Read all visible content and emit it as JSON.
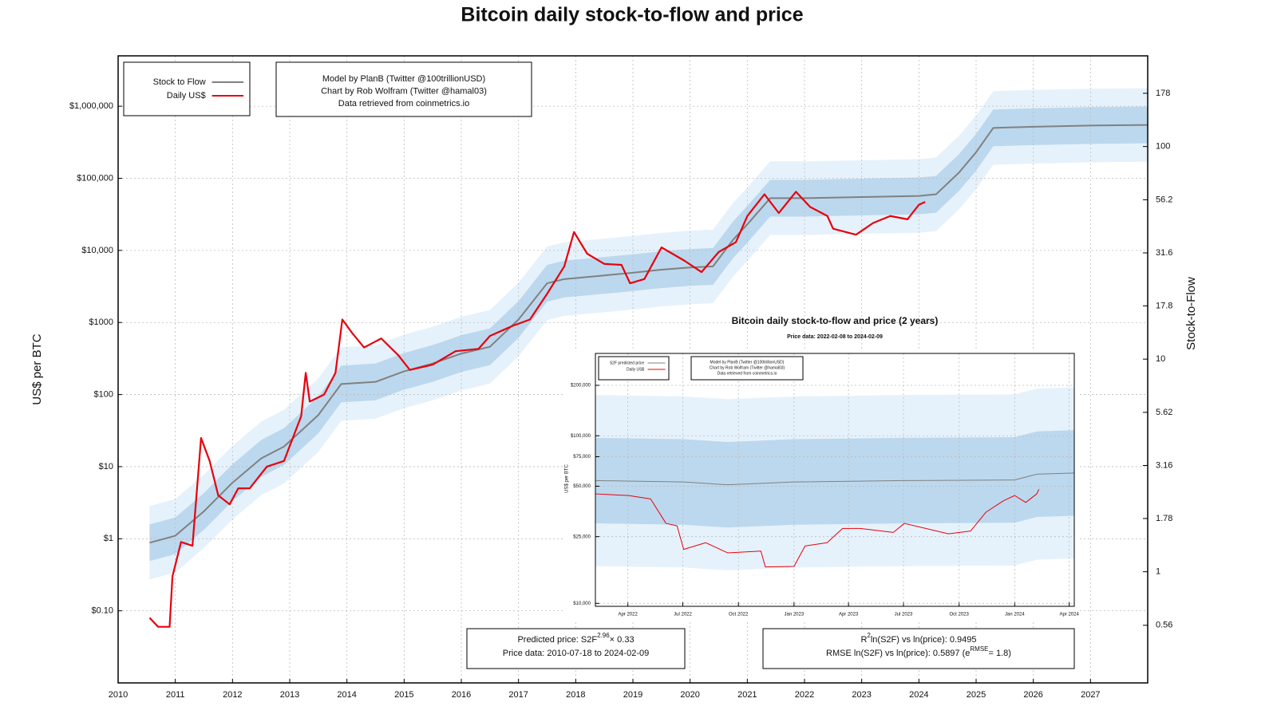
{
  "chart_data": [
    {
      "type": "line",
      "title": "Bitcoin daily stock-to-flow and price",
      "ylabel": "US$ per BTC",
      "y2label": "Stock-to-Flow",
      "xlim": [
        2010,
        2028
      ],
      "xticks": [
        2010,
        2011,
        2012,
        2013,
        2014,
        2015,
        2016,
        2017,
        2018,
        2019,
        2020,
        2021,
        2022,
        2023,
        2024,
        2025,
        2026,
        2027
      ],
      "ylim": [
        0.01,
        5000000
      ],
      "y_log": true,
      "yticks": [
        {
          "value": 1000000,
          "label": "$1,000,000"
        },
        {
          "value": 100000,
          "label": "$100,000"
        },
        {
          "value": 10000,
          "label": "$10,000"
        },
        {
          "value": 1000,
          "label": "$1000"
        },
        {
          "value": 100,
          "label": "$100"
        },
        {
          "value": 10,
          "label": "$10"
        },
        {
          "value": 1,
          "label": "$1"
        },
        {
          "value": 0.1,
          "label": "$0.10"
        }
      ],
      "y2lim": [
        0.3,
        267
      ],
      "y2_log": true,
      "y2ticks": [
        178,
        100,
        56.2,
        31.6,
        17.8,
        10,
        5.62,
        3.16,
        1.78,
        1,
        0.56
      ],
      "grid": true,
      "legend": "upper left",
      "series": [
        {
          "name": "Stock to Flow",
          "color": "#808080",
          "x": [
            2010.55,
            2011.0,
            2011.5,
            2012.0,
            2012.5,
            2012.9,
            2013.5,
            2013.9,
            2014.5,
            2015.0,
            2015.5,
            2016.0,
            2016.5,
            2017.0,
            2017.5,
            2017.8,
            2018.5,
            2019.0,
            2019.5,
            2020.0,
            2020.4,
            2020.75,
            2021.0,
            2021.4,
            2022.0,
            2023.0,
            2024.0,
            2024.3,
            2024.7,
            2025.0,
            2025.3,
            2026.0,
            2027.0,
            2028.0
          ],
          "values": [
            0.88,
            1.1,
            2.4,
            6,
            13,
            19,
            52,
            140,
            150,
            210,
            270,
            370,
            460,
            1100,
            3500,
            4000,
            4500,
            4900,
            5400,
            5800,
            6000,
            14000,
            23000,
            53000,
            53000,
            55000,
            57000,
            60000,
            120000,
            230000,
            500000,
            520000,
            540000,
            550000
          ],
          "bands": [
            {
              "color": "#e6f2fb",
              "upper": [
                2.85,
                3.56,
                7.78,
                19.4,
                42.1,
                61.6,
                168,
                454,
                486,
                680,
                875,
                1199,
                1490,
                3564,
                11340,
                12960,
                14580,
                15876,
                17496,
                18792,
                19440,
                45360,
                74520,
                171720,
                171720,
                178200,
                184680,
                194400,
                388800,
                745200,
                1620000,
                1684800,
                1749600,
                1782000
              ],
              "lower": [
                0.272,
                0.34,
                0.741,
                1.85,
                4.01,
                5.86,
                16.0,
                43.2,
                46.3,
                64.8,
                83.3,
                114,
                142,
                340,
                1080,
                1235,
                1389,
                1512,
                1667,
                1790,
                1852,
                4321,
                7099,
                16358,
                16358,
                16975,
                17593,
                18519,
                37037,
                70988,
                154321,
                160494,
                166667,
                169753
              ]
            },
            {
              "color": "#bcd8ee",
              "upper": [
                1.58,
                1.98,
                4.3,
                10.8,
                23.4,
                34.2,
                94,
                252,
                270,
                378,
                486,
                666,
                828,
                1980,
                6300,
                7200,
                8100,
                8820,
                9720,
                10440,
                10800,
                25200,
                41400,
                95400,
                95400,
                99000,
                102600,
                108000,
                216000,
                414000,
                900000,
                936000,
                972000,
                990000
              ],
              "lower": [
                0.49,
                0.61,
                1.33,
                3.33,
                7.2,
                10.6,
                28.9,
                77.8,
                83.3,
                117,
                150,
                206,
                256,
                611,
                1944,
                2222,
                2500,
                2722,
                3000,
                3222,
                3333,
                7778,
                12778,
                29444,
                29444,
                30556,
                31667,
                33333,
                66667,
                127778,
                277778,
                288889,
                300000,
                305556
              ]
            }
          ]
        },
        {
          "name": "Daily US$",
          "color": "#e8000b",
          "x": [
            2010.55,
            2010.7,
            2010.9,
            2010.95,
            2011.1,
            2011.3,
            2011.45,
            2011.6,
            2011.75,
            2011.95,
            2012.1,
            2012.3,
            2012.6,
            2012.9,
            2013.2,
            2013.28,
            2013.35,
            2013.6,
            2013.8,
            2013.92,
            2014.1,
            2014.3,
            2014.6,
            2014.9,
            2015.1,
            2015.5,
            2015.9,
            2016.3,
            2016.5,
            2016.9,
            2017.2,
            2017.5,
            2017.8,
            2017.97,
            2018.2,
            2018.5,
            2018.8,
            2018.95,
            2019.2,
            2019.5,
            2019.9,
            2020.2,
            2020.5,
            2020.8,
            2021.0,
            2021.3,
            2021.55,
            2021.85,
            2022.1,
            2022.4,
            2022.5,
            2022.9,
            2023.2,
            2023.5,
            2023.8,
            2024.0,
            2024.11
          ],
          "values": [
            0.08,
            0.06,
            0.06,
            0.3,
            0.9,
            0.8,
            25,
            12,
            4,
            3,
            5,
            5,
            10,
            12,
            50,
            200,
            80,
            100,
            200,
            1100,
            700,
            450,
            600,
            350,
            220,
            260,
            400,
            430,
            650,
            900,
            1100,
            2500,
            6000,
            18000,
            9000,
            6500,
            6300,
            3500,
            4000,
            11000,
            7200,
            5000,
            9500,
            13000,
            30000,
            60000,
            33000,
            65000,
            40000,
            30000,
            20000,
            16500,
            24000,
            30000,
            27000,
            43000,
            47000
          ]
        }
      ],
      "credits": [
        "Model by PlanB (Twitter @100trillionUSD)",
        "Chart by Rob Wolfram (Twitter @hamal03)",
        "Data retrieved from coinmetrics.io"
      ],
      "fit_note": [
        {
          "text": "Predicted price: S2F",
          "sup": "2.96",
          "after": "× 0.33"
        },
        {
          "text": "Price data: 2010-07-18 to 2024-02-09"
        }
      ],
      "stats_note": [
        {
          "text": "R",
          "sup": "2",
          "after": "ln(S2F) vs ln(price): 0.9495"
        },
        {
          "text": "RMSE ln(S2F) vs ln(price): 0.5897 (e",
          "sup": "RMSE",
          "after": "= 1.8)"
        }
      ]
    },
    {
      "type": "line",
      "title": "Bitcoin daily stock-to-flow and price (2 years)",
      "subtitle": "Price data: 2022-02-08 to 2024-02-09",
      "ylabel": "US$ per BTC",
      "xlim": [
        2022.1,
        2024.27
      ],
      "xticks": [
        {
          "value": 2022.247,
          "label": "Apr 2022"
        },
        {
          "value": 2022.496,
          "label": "Jul 2022"
        },
        {
          "value": 2022.748,
          "label": "Oct 2022"
        },
        {
          "value": 2023.0,
          "label": "Jan 2023"
        },
        {
          "value": 2023.247,
          "label": "Apr 2023"
        },
        {
          "value": 2023.496,
          "label": "Jul 2023"
        },
        {
          "value": 2023.748,
          "label": "Oct 2023"
        },
        {
          "value": 2024.0,
          "label": "Jan 2024"
        },
        {
          "value": 2024.247,
          "label": "Apr 2024"
        }
      ],
      "ylim": [
        9600,
        310000
      ],
      "y_log": true,
      "yticks": [
        {
          "value": 200000,
          "label": "$200,000"
        },
        {
          "value": 100000,
          "label": "$100,000"
        },
        {
          "value": 75000,
          "label": "$75,000"
        },
        {
          "value": 50000,
          "label": "$50,000"
        },
        {
          "value": 25000,
          "label": "$25,000"
        },
        {
          "value": 10000,
          "label": "$10,000"
        }
      ],
      "grid": true,
      "legend": "upper left",
      "series": [
        {
          "name": "S2F predicted price",
          "color": "#808080",
          "x": [
            2022.1,
            2022.5,
            2022.7,
            2023.0,
            2023.5,
            2024.0,
            2024.1,
            2024.27
          ],
          "values": [
            54000,
            53000,
            51000,
            53000,
            54000,
            54500,
            59000,
            60000
          ],
          "bands": [
            {
              "color": "#e6f2fb",
              "upper": [
                174960,
                171720,
                165240,
                171720,
                174960,
                176580,
                191160,
                194400
              ],
              "lower": [
                16667,
                16358,
                15741,
                16358,
                16667,
                16821,
                18210,
                18519
              ]
            },
            {
              "color": "#bcd8ee",
              "upper": [
                97200,
                95400,
                91800,
                95400,
                97200,
                98100,
                106200,
                108000
              ],
              "lower": [
                30000,
                29444,
                28333,
                29444,
                30000,
                30278,
                32778,
                33333
              ]
            }
          ]
        },
        {
          "name": "Daily US$",
          "color": "#e8000b",
          "x": [
            2022.1,
            2022.25,
            2022.35,
            2022.42,
            2022.47,
            2022.5,
            2022.6,
            2022.7,
            2022.85,
            2022.87,
            2023.0,
            2023.05,
            2023.15,
            2023.22,
            2023.3,
            2023.45,
            2023.5,
            2023.7,
            2023.8,
            2023.87,
            2023.95,
            2024.0,
            2024.05,
            2024.1,
            2024.11
          ],
          "values": [
            45000,
            44000,
            42000,
            30000,
            29000,
            21000,
            23000,
            20000,
            20500,
            16500,
            16600,
            22000,
            23000,
            28000,
            28000,
            26500,
            30000,
            26000,
            27000,
            35000,
            41000,
            44000,
            40000,
            45000,
            48000
          ]
        }
      ],
      "credits": [
        "Model by PlanB (Twitter @100trillionUSD)",
        "Chart by Rob Wolfram (Twitter @hamal03)",
        "Data retrieved from coinmetrics.io"
      ]
    }
  ]
}
